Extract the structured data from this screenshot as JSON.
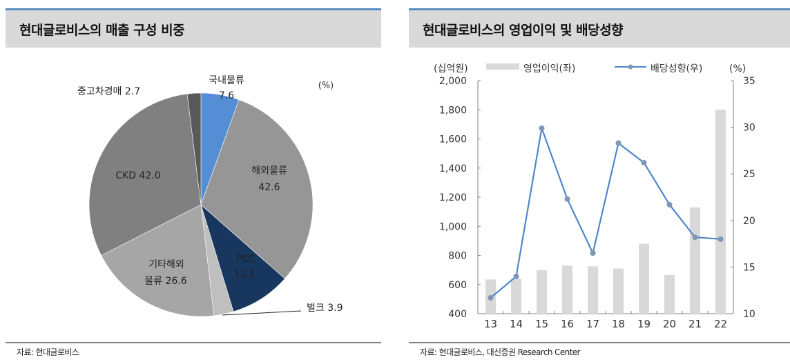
{
  "left": {
    "title": "현대글로비스의 매출 구성 비중",
    "unit": "(%)",
    "source": "자료: 현대글로비스"
  },
  "right": {
    "title": "현대글로비스의 영업이익 및 배당성향",
    "left_unit": "(십억원)",
    "right_unit": "(%)",
    "legend_bar": "영업이익(좌)",
    "legend_line": "배당성향(우)",
    "source": "자료: 현대글로비스, 대신증권 Research Center"
  },
  "colors": {
    "header_bg": "#d9d9d9",
    "header_border": "#5a8ac0",
    "bar": "#d9d9d9",
    "line": "#4f86c9",
    "marker": "#7f96b5",
    "pie_domestic": "#558ed5",
    "pie_overseas": "#969696",
    "pie_pcc": "#17375e",
    "pie_bulk": "#bfbfbf",
    "pie_other_overseas": "#a6a6a6",
    "pie_ckd": "#808080",
    "pie_used_car": "#595959"
  },
  "chart_data": [
    {
      "type": "pie",
      "title": "현대글로비스의 매출 구성 비중",
      "unit": "(%)",
      "categories": [
        "국내물류",
        "해외물류",
        "PCC",
        "벌크",
        "기타해외물류",
        "CKD",
        "중고차경매"
      ],
      "values": [
        7.6,
        42.6,
        12.1,
        3.9,
        26.6,
        42.0,
        2.7
      ],
      "labels": [
        "국내물류 7.6",
        "해외물류 42.6",
        "PCC 12.1",
        "벌크 3.9",
        "기타해외 물류 26.6",
        "CKD 42.0",
        "중고차경매 2.7"
      ],
      "start_angle": "12 o'clock, clockwise"
    },
    {
      "type": "bar+line",
      "title": "현대글로비스의 영업이익 및 배당성향",
      "categories": [
        "13",
        "14",
        "15",
        "16",
        "17",
        "18",
        "19",
        "20",
        "21",
        "22"
      ],
      "series": [
        {
          "name": "영업이익(좌)",
          "type": "bar",
          "axis": "left",
          "values": [
            635,
            640,
            700,
            730,
            725,
            710,
            880,
            665,
            1130,
            1800
          ]
        },
        {
          "name": "배당성향(우)",
          "type": "line",
          "axis": "right",
          "values": [
            11.7,
            14.0,
            29.9,
            22.3,
            16.5,
            28.3,
            26.2,
            21.7,
            18.2,
            18.0
          ]
        }
      ],
      "ylabel_left": "(십억원)",
      "ylabel_right": "(%)",
      "ylim_left": [
        400,
        2000
      ],
      "yticks_left": [
        "400",
        "600",
        "800",
        "1,000",
        "1,200",
        "1,400",
        "1,600",
        "1,800",
        "2,000"
      ],
      "ylim_right": [
        10,
        35
      ],
      "yticks_right": [
        "10",
        "15",
        "20",
        "25",
        "30",
        "35"
      ],
      "grid": false,
      "legend_position": "top"
    }
  ]
}
